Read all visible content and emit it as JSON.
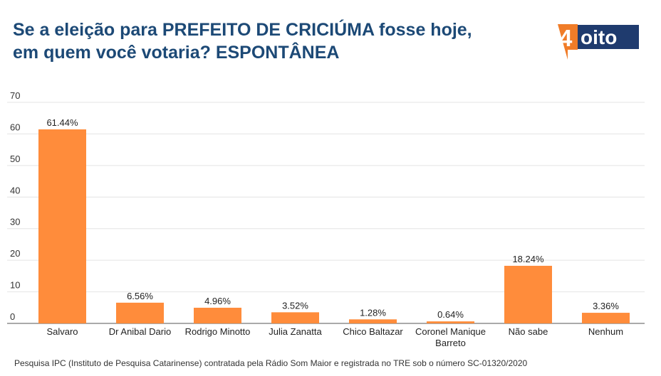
{
  "header": {
    "title_line1": "Se a eleição para PREFEITO DE CRICIÚMA fosse hoje,",
    "title_line2": "em quem você votaria? ESPONTÂNEA"
  },
  "logo": {
    "digit": "4",
    "text": "oito"
  },
  "source": "Pesquisa IPC (Instituto de Pesquisa Catarinense) contratada pela Rádio Som Maior e registrada no TRE sob o número SC-01320/2020",
  "colors": {
    "title": "#1c4976",
    "bar": "#ff8c3b",
    "logo_navy": "#1f3b6e",
    "logo_orange": "#f07c28"
  },
  "chart_data": {
    "type": "bar",
    "categories": [
      "Salvaro",
      "Dr Anibal Dario",
      "Rodrigo Minotto",
      "Julia Zanatta",
      "Chico Baltazar",
      "Coronel Manique Barreto",
      "Não sabe",
      "Nenhum"
    ],
    "category_lines": [
      [
        "Salvaro"
      ],
      [
        "Dr Anibal Dario"
      ],
      [
        "Rodrigo Minotto"
      ],
      [
        "Julia Zanatta"
      ],
      [
        "Chico Baltazar"
      ],
      [
        "Coronel Manique",
        "Barreto"
      ],
      [
        "Não sabe"
      ],
      [
        "Nenhum"
      ]
    ],
    "values": [
      61.44,
      6.56,
      4.96,
      3.52,
      1.28,
      0.64,
      18.24,
      3.36
    ],
    "data_labels": [
      "61.44%",
      "6.56%",
      "4.96%",
      "3.52%",
      "1.28%",
      "0.64%",
      "18.24%",
      "3.36%"
    ],
    "ylim": [
      0,
      70
    ],
    "yticks": [
      0,
      10,
      20,
      30,
      40,
      50,
      60,
      70
    ],
    "grid": true,
    "xlabel": "",
    "ylabel": ""
  }
}
